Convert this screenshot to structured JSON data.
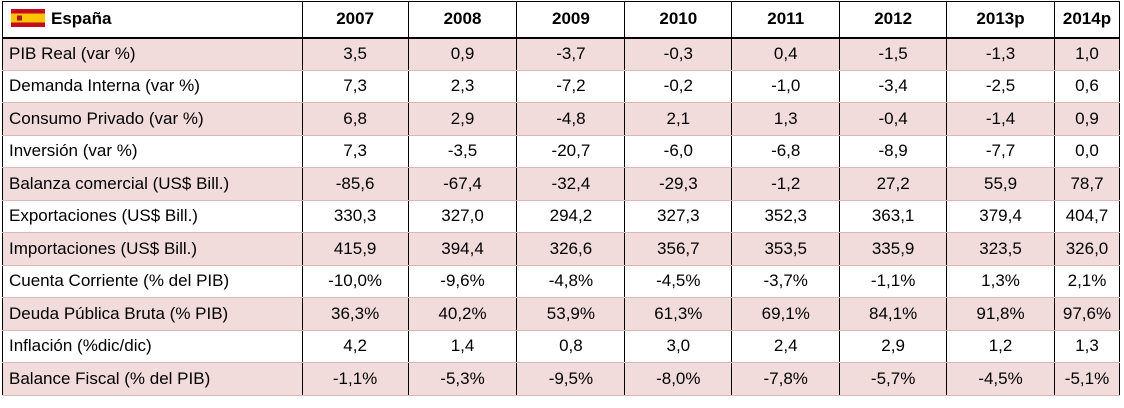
{
  "header": {
    "title": "España",
    "columns": [
      "2007",
      "2008",
      "2009",
      "2010",
      "2011",
      "2012",
      "2013p",
      "2014p"
    ]
  },
  "rows": [
    [
      "PIB Real (var %)",
      "3,5",
      "0,9",
      "-3,7",
      "-0,3",
      "0,4",
      "-1,5",
      "-1,3",
      "1,0"
    ],
    [
      "Demanda Interna (var %)",
      "7,3",
      "2,3",
      "-7,2",
      "-0,2",
      "-1,0",
      "-3,4",
      "-2,5",
      "0,6"
    ],
    [
      "Consumo Privado (var %)",
      "6,8",
      "2,9",
      "-4,8",
      "2,1",
      "1,3",
      "-0,4",
      "-1,4",
      "0,9"
    ],
    [
      "Inversión (var %)",
      "7,3",
      "-3,5",
      "-20,7",
      "-6,0",
      "-6,8",
      "-8,9",
      "-7,7",
      "0,0"
    ],
    [
      "Balanza comercial (US$ Bill.)",
      "-85,6",
      "-67,4",
      "-32,4",
      "-29,3",
      "-1,2",
      "27,2",
      "55,9",
      "78,7"
    ],
    [
      "Exportaciones (US$ Bill.)",
      "330,3",
      "327,0",
      "294,2",
      "327,3",
      "352,3",
      "363,1",
      "379,4",
      "404,7"
    ],
    [
      "Importaciones (US$ Bill.)",
      "415,9",
      "394,4",
      "326,6",
      "356,7",
      "353,5",
      "335,9",
      "323,5",
      "326,0"
    ],
    [
      "Cuenta Corriente (% del PIB)",
      "-10,0%",
      "-9,6%",
      "-4,8%",
      "-4,5%",
      "-3,7%",
      "-1,1%",
      "1,3%",
      "2,1%"
    ],
    [
      "Deuda Pública Bruta (% PIB)",
      "36,3%",
      "40,2%",
      "53,9%",
      "61,3%",
      "69,1%",
      "84,1%",
      "91,8%",
      "97,6%"
    ],
    [
      "Inflación (%dic/dic)",
      "4,2",
      "1,4",
      "0,8",
      "3,0",
      "2,4",
      "2,9",
      "1,2",
      "1,3"
    ],
    [
      "Balance Fiscal (% del PIB)",
      "-1,1%",
      "-5,3%",
      "-9,5%",
      "-8,0%",
      "-7,8%",
      "-5,7%",
      "-4,5%",
      "-5,1%"
    ]
  ]
}
